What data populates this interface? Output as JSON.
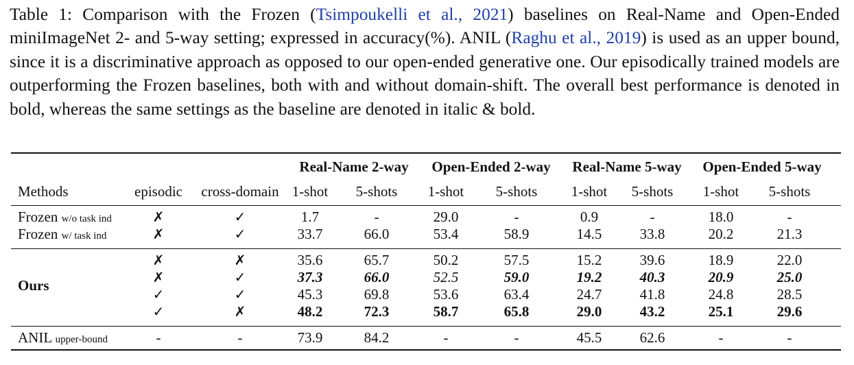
{
  "caption": {
    "p1": "Table 1: Comparison with the Frozen (",
    "c1": "Tsimpoukelli et al., 2021",
    "p2": ") baselines on Real-Name and Open-Ended miniImageNet 2- and 5-way setting; expressed in accuracy(%). ANIL (",
    "c2": "Raghu et al., 2019",
    "p3": ") is used as an upper bound, since it is a discriminative approach as opposed to our open-ended generative one. Our episodically trained models are outperforming the Frozen baselines, both with and without domain-shift. The overall best performance is denoted in bold, whereas the same settings as the baseline are denoted in italic & bold."
  },
  "table": {
    "groups": [
      "Real-Name 2-way",
      "Open-Ended 2-way",
      "Real-Name 5-way",
      "Open-Ended 5-way"
    ],
    "columns": [
      "Methods",
      "episodic",
      "cross-domain",
      "1-shot",
      "5-shots",
      "1-shot",
      "5-shots",
      "1-shot",
      "5-shots",
      "1-shot",
      "5-shots"
    ],
    "frozen": [
      {
        "name": "Frozen",
        "sub": "w/o task ind",
        "episodic": "✗",
        "cross": "✓",
        "vals": [
          "1.7",
          "-",
          "29.0",
          "-",
          "0.9",
          "-",
          "18.0",
          "-"
        ]
      },
      {
        "name": "Frozen",
        "sub": "w/ task ind",
        "episodic": "✗",
        "cross": "✓",
        "vals": [
          "33.7",
          "66.0",
          "53.4",
          "58.9",
          "14.5",
          "33.8",
          "20.2",
          "21.3"
        ]
      }
    ],
    "ours_label": "Ours",
    "ours": [
      {
        "episodic": "✗",
        "cross": "✗",
        "vals": [
          "35.6",
          "65.7",
          "50.2",
          "57.5",
          "15.2",
          "39.6",
          "18.9",
          "22.0"
        ],
        "styles": [
          "",
          "",
          "",
          "",
          "",
          "",
          "",
          ""
        ]
      },
      {
        "episodic": "✗",
        "cross": "✓",
        "vals": [
          "37.3",
          "66.0",
          "52.5",
          "59.0",
          "19.2",
          "40.3",
          "20.9",
          "25.0"
        ],
        "styles": [
          "bi",
          "bi",
          "it",
          "bi",
          "bi",
          "bi",
          "bi",
          "bi"
        ]
      },
      {
        "episodic": "✓",
        "cross": "✓",
        "vals": [
          "45.3",
          "69.8",
          "53.6",
          "63.4",
          "24.7",
          "41.8",
          "24.8",
          "28.5"
        ],
        "styles": [
          "",
          "",
          "",
          "",
          "",
          "",
          "",
          ""
        ]
      },
      {
        "episodic": "✓",
        "cross": "✗",
        "vals": [
          "48.2",
          "72.3",
          "58.7",
          "65.8",
          "29.0",
          "43.2",
          "25.1",
          "29.6"
        ],
        "styles": [
          "b",
          "b",
          "b",
          "b",
          "b",
          "b",
          "b",
          "b"
        ]
      }
    ],
    "anil": {
      "name": "ANIL",
      "sub": "upper-bound",
      "episodic": "-",
      "cross": "-",
      "vals": [
        "73.9",
        "84.2",
        "-",
        "-",
        "45.5",
        "62.6",
        "-",
        "-"
      ]
    }
  }
}
